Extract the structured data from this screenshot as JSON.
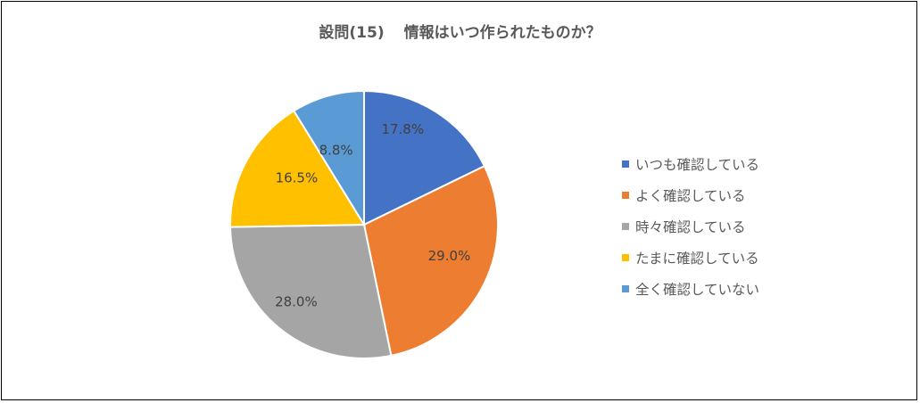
{
  "chart_data": {
    "type": "pie",
    "title_part1": "設問(15)",
    "title_part2": "情報はいつ作られたものか？",
    "categories": [
      "いつも確認している",
      "よく確認している",
      "時々確認している",
      "たまに確認している",
      "全く確認していない"
    ],
    "values": [
      17.8,
      29.0,
      28.0,
      16.5,
      8.8
    ],
    "labels": [
      "17.8%",
      "29.0%",
      "28.0%",
      "16.5%",
      "8.8%"
    ],
    "colors": [
      "#4472C4",
      "#ED7D31",
      "#A5A5A5",
      "#FFC000",
      "#5B9BD5"
    ],
    "start": "12 o'clock",
    "direction": "clockwise",
    "legend_position": "right"
  }
}
